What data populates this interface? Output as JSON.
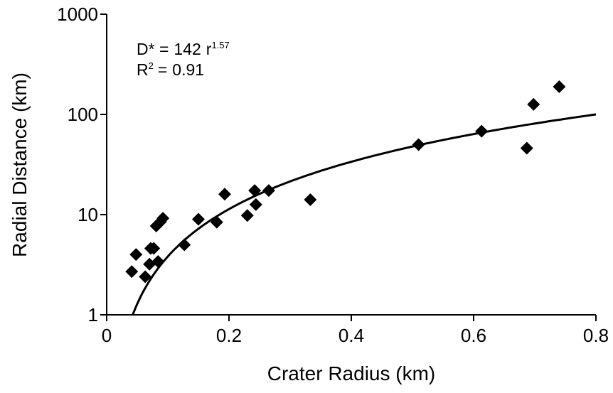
{
  "chart_data": {
    "type": "scatter",
    "x_label": "Crater Radius (km)",
    "y_label": "Radial Distance (km)",
    "x": [
      0.041,
      0.048,
      0.063,
      0.07,
      0.072,
      0.077,
      0.084,
      0.081,
      0.088,
      0.092,
      0.15,
      0.127,
      0.18,
      0.193,
      0.23,
      0.244,
      0.242,
      0.265,
      0.333,
      0.51,
      0.613,
      0.687,
      0.698,
      0.74
    ],
    "values": [
      2.7,
      4.0,
      2.4,
      3.2,
      4.6,
      4.6,
      3.4,
      7.7,
      8.5,
      9.2,
      9.0,
      5.0,
      8.4,
      16,
      9.8,
      12.6,
      17.4,
      17.4,
      14.1,
      50,
      68,
      46,
      126,
      189
    ],
    "color": "#000000",
    "xlim": [
      0,
      0.8
    ],
    "xticks": [
      0,
      0.2,
      0.4,
      0.6,
      0.8
    ],
    "ylim": [
      1,
      1000
    ],
    "yticks": [
      1,
      10,
      100,
      1000
    ],
    "y_log": true,
    "grid": false,
    "fit": {
      "equation_prefix": "D* =",
      "coefficient": 142,
      "variable": "r",
      "exponent": 1.57,
      "r_squared_label": "R",
      "r_squared_power": "2",
      "equals": "=",
      "r_squared": 0.91
    }
  }
}
